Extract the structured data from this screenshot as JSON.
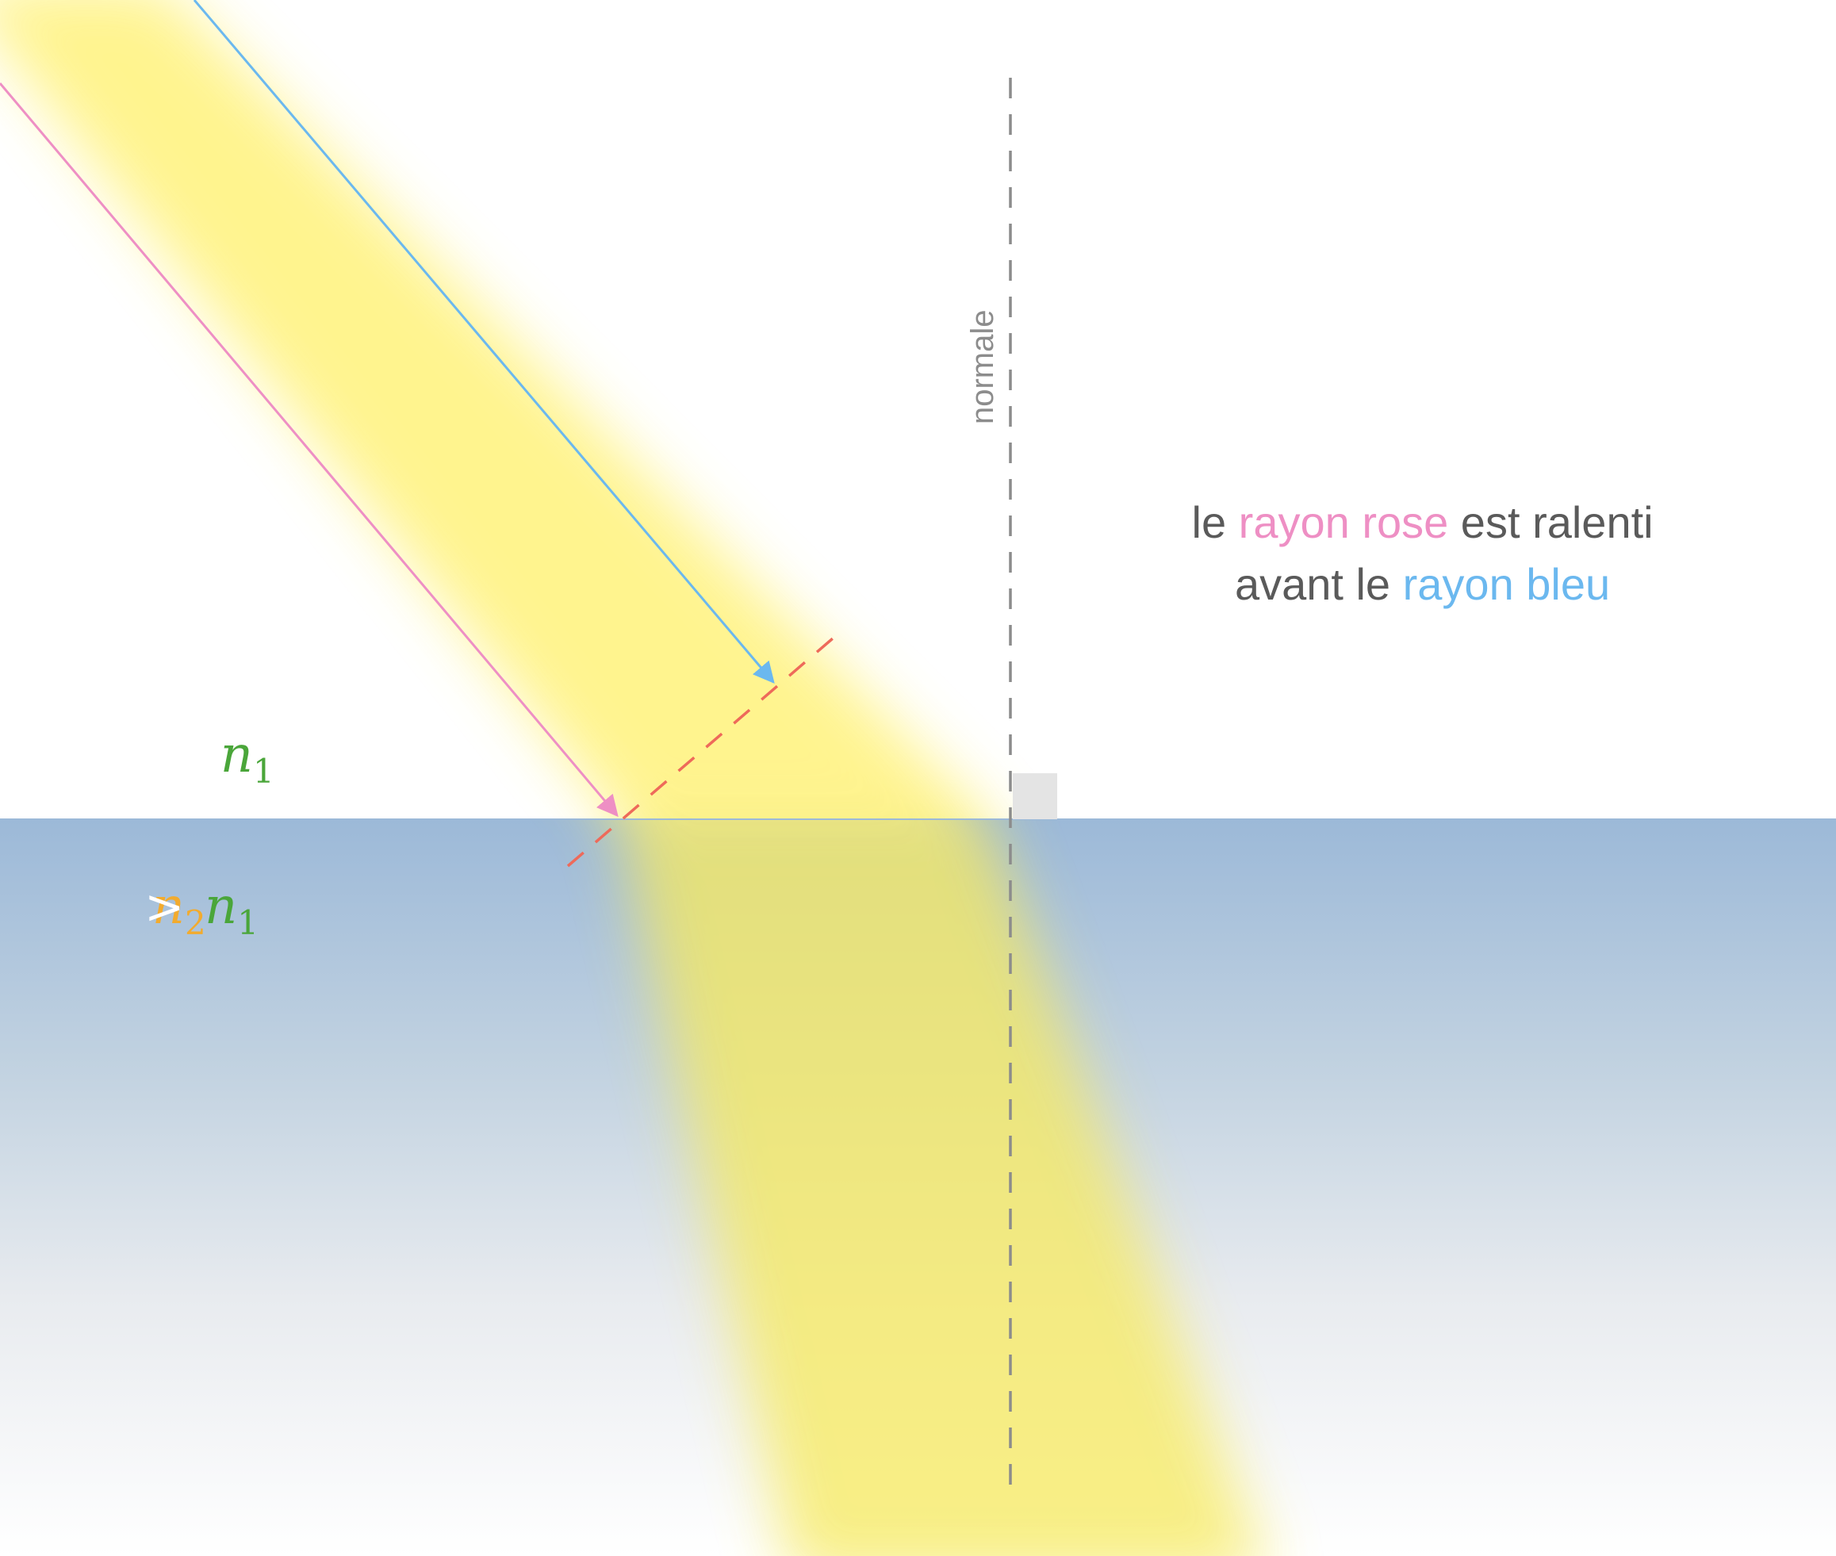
{
  "colors": {
    "beam": "#fff27a",
    "medium_top": "#9db9d8",
    "ray_pink": "#ee8fc4",
    "ray_blue": "#6bb8ef",
    "wavefront": "#ee6a5a",
    "normal_line": "#8c8c8c",
    "text_gray": "#5a5a5a",
    "n1_green": "#4aa63a",
    "n2_orange": "#f2ab2e",
    "right_angle": "#e4e4e4"
  },
  "labels": {
    "normal": "normale",
    "n_letter": "n",
    "sub_1": "1",
    "sub_2": "2",
    "gt": ">"
  },
  "caption": {
    "line1_pre": "le ",
    "line1_pink": "rayon rose",
    "line1_post": " est ralenti",
    "line2_pre": "avant le ",
    "line2_blue": "rayon bleu"
  }
}
